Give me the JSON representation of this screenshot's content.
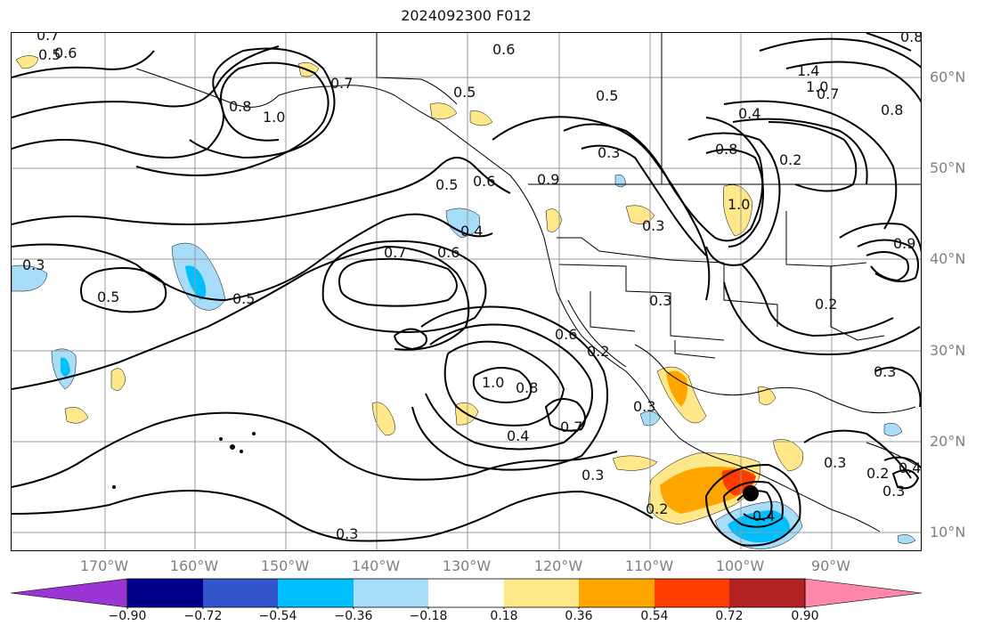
{
  "title": "2024092300 F012",
  "lat_labels": [
    "60°N",
    "50°N",
    "40°N",
    "30°N",
    "20°N",
    "10°N"
  ],
  "lon_labels": [
    "170°W",
    "160°W",
    "150°W",
    "140°W",
    "130°W",
    "120°W",
    "110°W",
    "100°W",
    "90°W"
  ],
  "colorbar": {
    "ticks": [
      "−0.90",
      "−0.72",
      "−0.54",
      "−0.36",
      "−0.18",
      "0.18",
      "0.36",
      "0.54",
      "0.72",
      "0.90"
    ],
    "colors": [
      "#9a35d4",
      "#00008b",
      "#3355cc",
      "#00bfff",
      "#a8ddfa",
      "#ffffff",
      "#ffe88a",
      "#ffa500",
      "#ff3d00",
      "#b22222",
      "#ff88aa"
    ]
  },
  "contour_labels": [
    "0.7",
    "0.6",
    "0.6",
    "0.5",
    "0.8",
    "1.0",
    "0.7",
    "0.5",
    "1.4",
    "1.0",
    "0.7",
    "0.8",
    "0.8",
    "0.4",
    "0.3",
    "0.2",
    "0.8",
    "1.0",
    "0.3",
    "0.5",
    "0.6",
    "0.4",
    "0.7",
    "0.6",
    "0.3",
    "0.5",
    "0.5",
    "0.9",
    "0.3",
    "1.0",
    "0.8",
    "0.2",
    "0.3",
    "0.6",
    "0.2",
    "0.3",
    "0.7",
    "0.4",
    "0.3",
    "0.2",
    "0.3",
    "0.4",
    "0.3",
    "0.2",
    "0.3",
    "0.4",
    "0.5",
    "0.9"
  ],
  "hurricane_marker": "tropical-cyclone-center"
}
